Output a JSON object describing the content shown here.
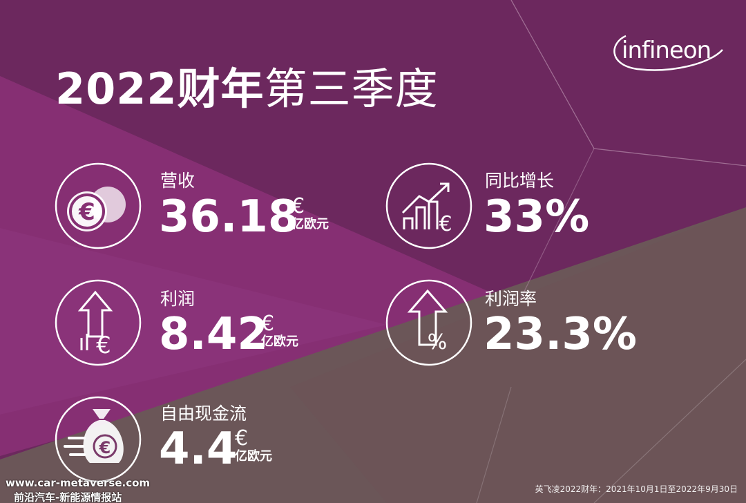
{
  "header": {
    "title_bold": "2022财年",
    "title_light": "第三季度",
    "logo_text": "infineon"
  },
  "metrics": {
    "revenue": {
      "label": "营收",
      "value": "36.18",
      "currency": "€",
      "unit": "亿欧元",
      "icon": "coins-euro-icon"
    },
    "growth": {
      "label": "同比增长",
      "value": "33%",
      "icon": "growth-chart-euro-icon"
    },
    "profit": {
      "label": "利润",
      "value": "8.42",
      "currency": "€",
      "unit": "亿欧元",
      "icon": "arrow-up-euro-icon"
    },
    "margin": {
      "label": "利润率",
      "value": "23.3%",
      "icon": "arrow-up-percent-icon"
    },
    "cashflow": {
      "label": "自由现金流",
      "value": "4.4",
      "currency": "€",
      "unit": "亿欧元",
      "icon": "money-bag-euro-icon"
    }
  },
  "footer": {
    "note": "英飞凌2022财年：2021年10月1日至2022年9月30日"
  },
  "watermark": {
    "line1": "www.car-metaverse.com",
    "line2": "前沿汽车-新能源情报站"
  },
  "colors": {
    "background_top": "#6b2a5e",
    "background_left": "#7e2f6e",
    "background_mid": "#8a3478",
    "background_bottom": "#6b5558",
    "text": "#ffffff"
  }
}
